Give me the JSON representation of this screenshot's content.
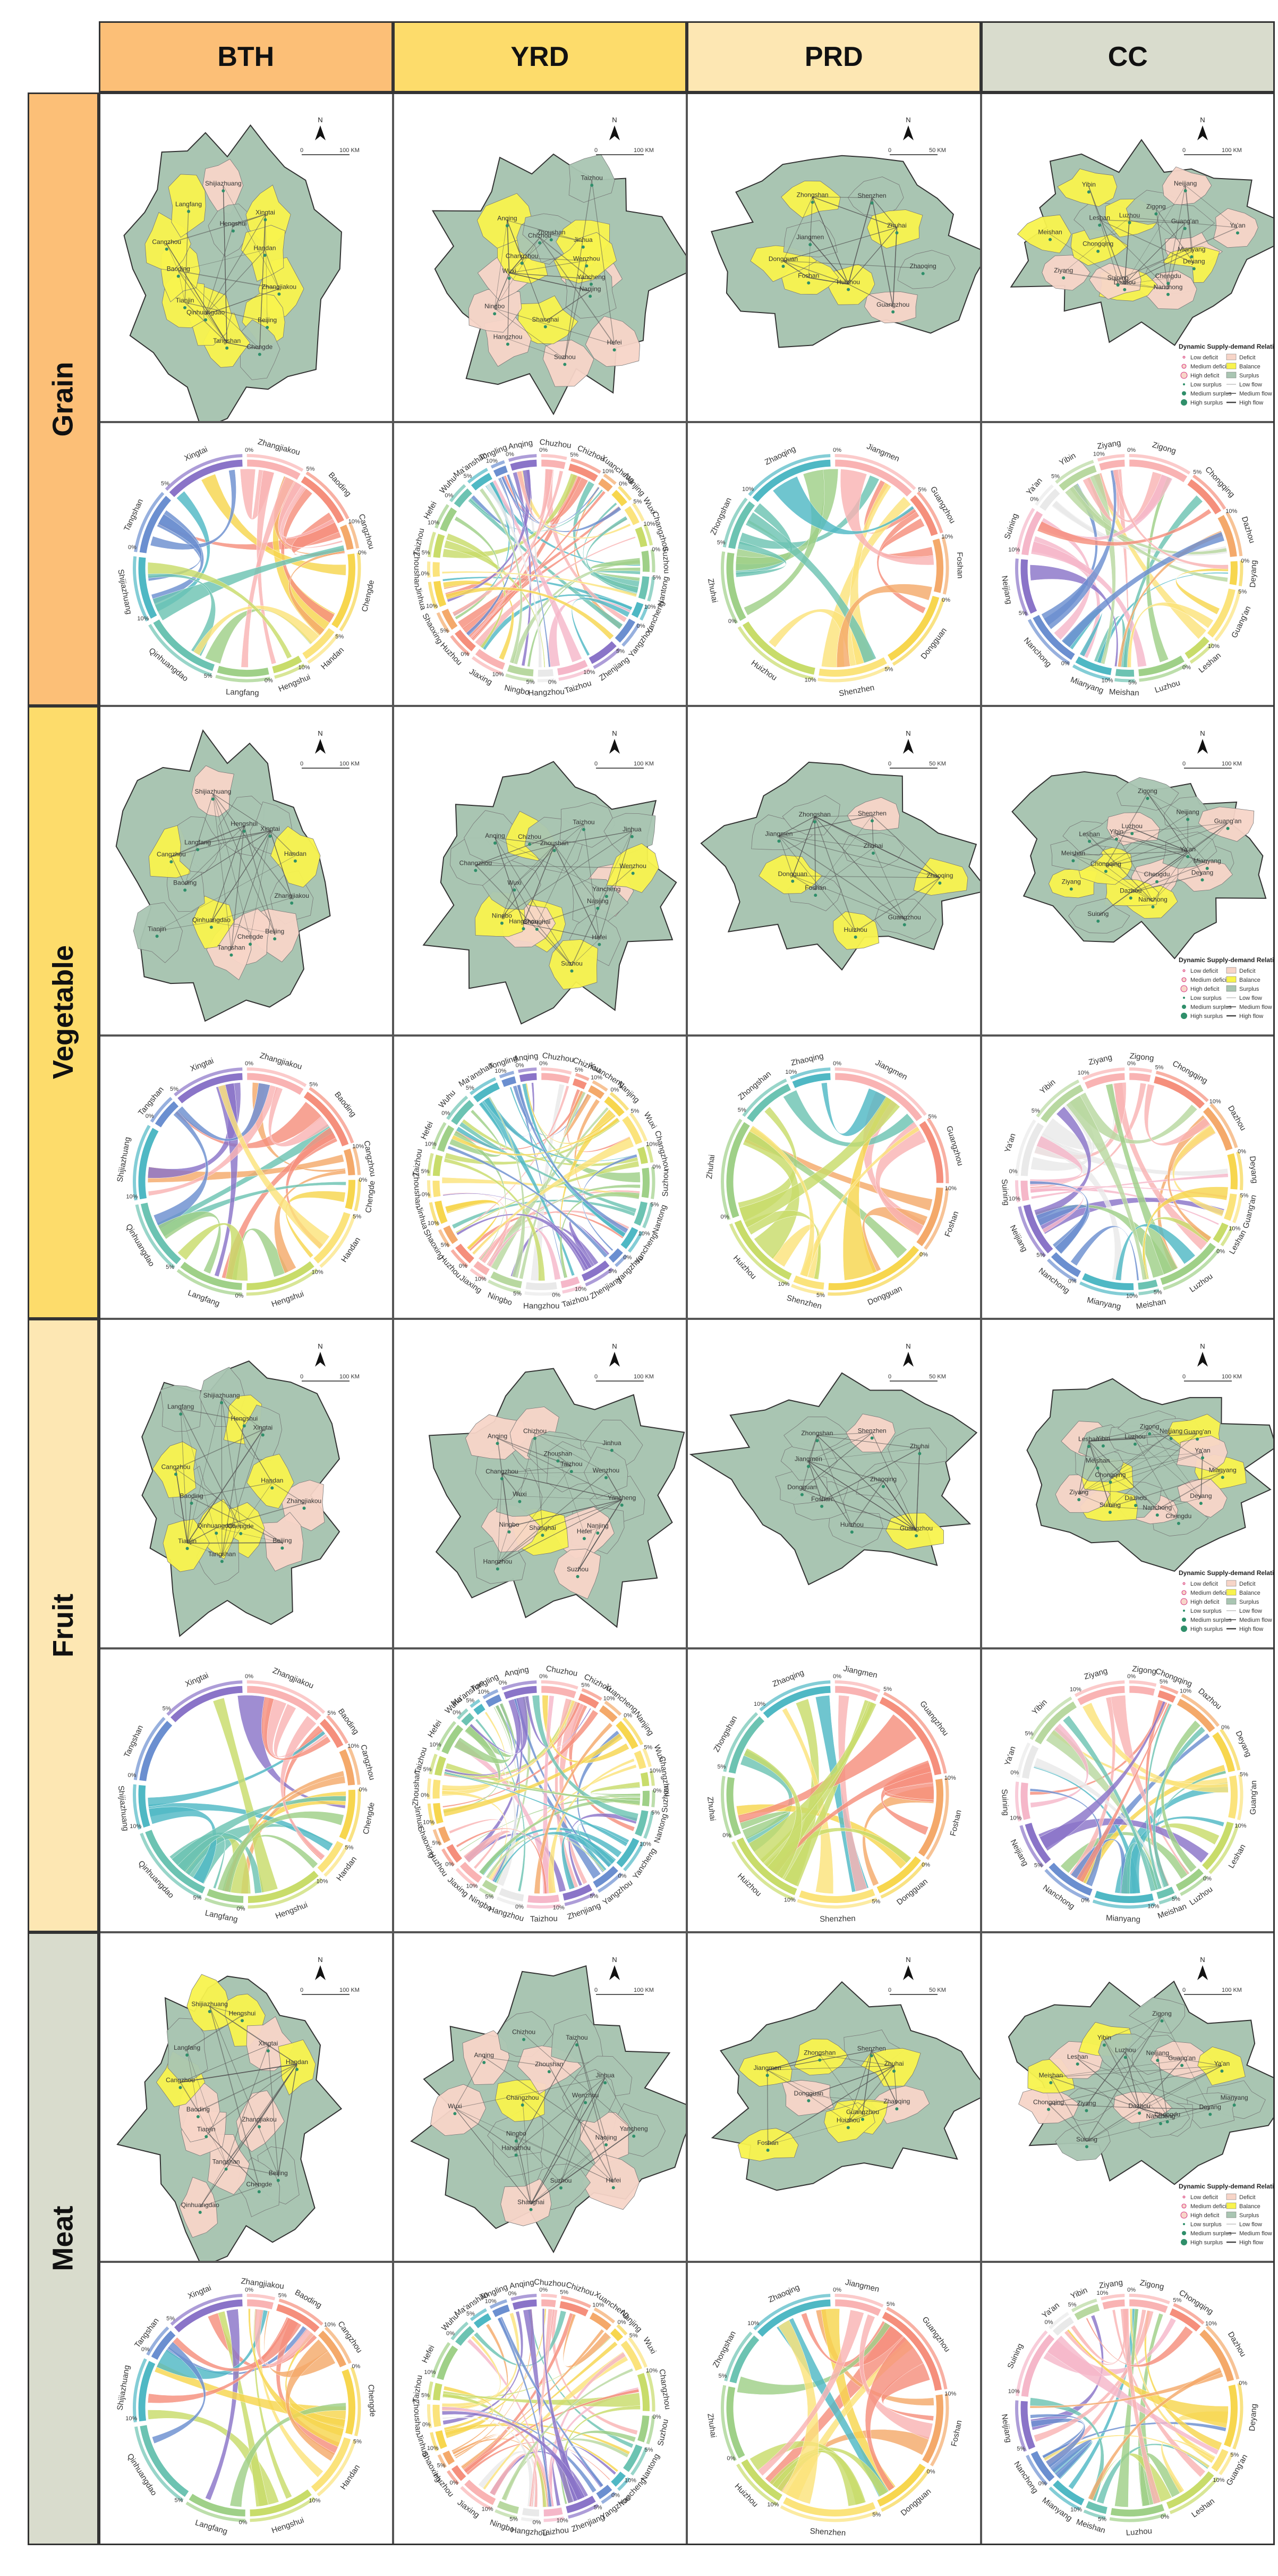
{
  "colors": {
    "col_bth": "#fcbf77",
    "col_yrd": "#fddc6b",
    "col_prd": "#fde7b3",
    "col_cc": "#d9dccd",
    "row_grain": "#fcbf77",
    "row_vegetable": "#fddc6b",
    "row_fruit": "#fde7b3",
    "row_meat": "#d9dccd",
    "deficit": "#f7d5c8",
    "balance": "#f8f34e",
    "surplus": "#a9c5b2",
    "flow": "#555555"
  },
  "columns": [
    {
      "id": "bth",
      "label": "BTH",
      "scale_label": "100 KM",
      "scale_zero": "0",
      "cities": [
        "Zhangjiakou",
        "Beijing",
        "Chengde",
        "Tangshan",
        "Qinhuangdao",
        "Tianjin",
        "Baoding",
        "Cangzhou",
        "Langfang",
        "Shijiazhuang",
        "Hengshui",
        "Xingtai",
        "Handan"
      ],
      "chord_labels": [
        "Zhangjiakou",
        "Baoding",
        "Cangzhou",
        "Chengde",
        "Handan",
        "Hengshui",
        "Langfang",
        "Qinhuangdao",
        "Shijiazhuang",
        "Tangshan",
        "Xingtai"
      ]
    },
    {
      "id": "yrd",
      "label": "YRD",
      "scale_label": "100 KM",
      "scale_zero": "0",
      "cities": [
        "Yancheng",
        "Nanjing",
        "Hefei",
        "Suzhou",
        "Shanghai",
        "Hangzhou",
        "Ningbo",
        "Wuxi",
        "Changzhou",
        "Anqing",
        "Chizhou",
        "Zhoushan",
        "Taizhou",
        "Jinhua",
        "Wenzhou"
      ],
      "chord_labels": [
        "Chuzhou",
        "Chizhou",
        "Xuancheng",
        "Nanjing",
        "Wuxi",
        "Changzhou",
        "Suzhou",
        "Nantong",
        "Yancheng",
        "Yangzhou",
        "Zhenjiang",
        "Taizhou",
        "Hangzhou",
        "Ningbo",
        "Jiaxing",
        "Huzhou",
        "Shaoxing",
        "Jinhua",
        "Zhoushan",
        "Taizhou",
        "Hefei",
        "Wuhu",
        "Ma'anshan",
        "Tongling",
        "Anqing"
      ],
      "chord_labels_short": [
        "Chuzhou",
        "Chizhou",
        "Xuancheng",
        "Nanjing",
        "Wuxi",
        "Changzhou",
        "Suzhou",
        "Nantong",
        "Yancheng",
        "Yangzhou",
        "Zhenjiang",
        "Taizhou",
        "Hangzhou",
        "Ningbo",
        "Jiaxing",
        "Huzhou",
        "Shaoxing",
        "Jinhua",
        "Zhoushan",
        "Hefei",
        "Wuhu",
        "Ma'anshan",
        "Tongling",
        "Anqing",
        "Taizhou"
      ]
    },
    {
      "id": "prd",
      "label": "PRD",
      "scale_label": "50 KM",
      "scale_zero": "0",
      "cities": [
        "Zhaoqing",
        "Guangzhou",
        "Huizhou",
        "Foshan",
        "Dongguan",
        "Jiangmen",
        "Zhongshan",
        "Shenzhen",
        "Zhuhai"
      ],
      "chord_labels": [
        "Jiangmen",
        "Guangzhou",
        "Foshan",
        "Dongguan",
        "Shenzhen",
        "Huizhou",
        "Zhuhai",
        "Zhongshan",
        "Zhaoqing"
      ]
    },
    {
      "id": "cc",
      "label": "CC",
      "scale_label": "100 KM",
      "scale_zero": "0",
      "cities": [
        "Mianyang",
        "Deyang",
        "Chengdu",
        "Nanchong",
        "Dazhou",
        "Suining",
        "Ziyang",
        "Chongqing",
        "Meishan",
        "Leshan",
        "Yibin",
        "Luzhou",
        "Zigong",
        "Neijiang",
        "Guang'an",
        "Ya'an"
      ],
      "chord_labels": [
        "Zigong",
        "Chongqing",
        "Dazhou",
        "Deyang",
        "Guang'an",
        "Leshan",
        "Luzhou",
        "Meishan",
        "Mianyang",
        "Nanchong",
        "Neijiang",
        "Suining",
        "Ya'an",
        "Yibin",
        "Ziyang"
      ]
    }
  ],
  "rows": [
    {
      "id": "grain",
      "label": "Grain"
    },
    {
      "id": "vegetable",
      "label": "Vegetable"
    },
    {
      "id": "fruit",
      "label": "Fruit"
    },
    {
      "id": "meat",
      "label": "Meat"
    }
  ],
  "map_common": {
    "north_label": "N",
    "legend_title": "Dynamic Supply-demand Relationships",
    "legend_left": [
      "Low deficit",
      "Medium deficit",
      "High deficit",
      "Low surplus",
      "Medium surplus",
      "High surplus"
    ],
    "legend_right": [
      "Deficit",
      "Balance",
      "Surplus",
      "Low flow",
      "Medium flow",
      "High flow"
    ]
  },
  "chord_common": {
    "percent_ticks": [
      "0%",
      "5%",
      "10%",
      "15%",
      "20%",
      "25%",
      "30%"
    ]
  }
}
